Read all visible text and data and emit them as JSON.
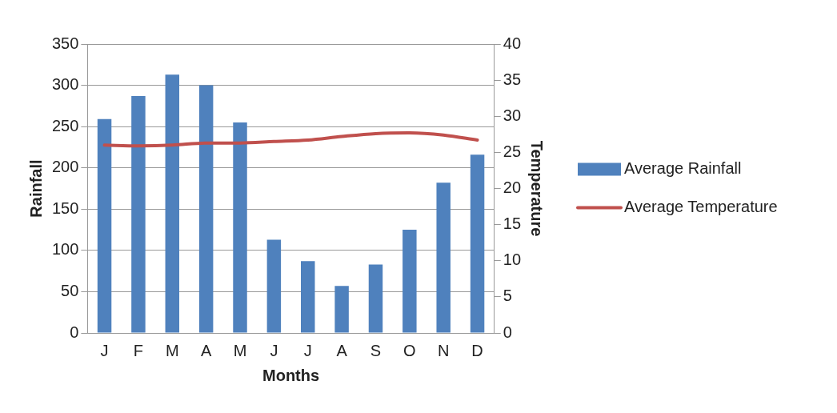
{
  "chart_data": {
    "type": "bar",
    "xlabel": "Months",
    "ylabel": "Rainfall",
    "y2label": "Temperature",
    "categories": [
      "J",
      "F",
      "M",
      "A",
      "M",
      "J",
      "J",
      "A",
      "S",
      "O",
      "N",
      "D"
    ],
    "series": [
      {
        "name": "Average Rainfall",
        "color": "#4f81bd",
        "values": [
          259,
          287,
          313,
          300,
          255,
          113,
          87,
          57,
          83,
          125,
          182,
          216
        ]
      },
      {
        "name": "Average Temperature",
        "type": "line",
        "axis": "y2",
        "color": "#c0504d",
        "values": [
          26.0,
          25.9,
          26.0,
          26.3,
          26.3,
          26.5,
          26.7,
          27.2,
          27.6,
          27.7,
          27.4,
          26.7
        ]
      }
    ],
    "ylim": [
      0,
      350
    ],
    "yticks": [
      0,
      50,
      100,
      150,
      200,
      250,
      300,
      350
    ],
    "y2lim": [
      0,
      40
    ],
    "y2ticks": [
      0,
      5,
      10,
      15,
      20,
      25,
      30,
      35,
      40
    ],
    "grid": "y",
    "legend": "right",
    "marker": "none",
    "line_style": "solid"
  }
}
